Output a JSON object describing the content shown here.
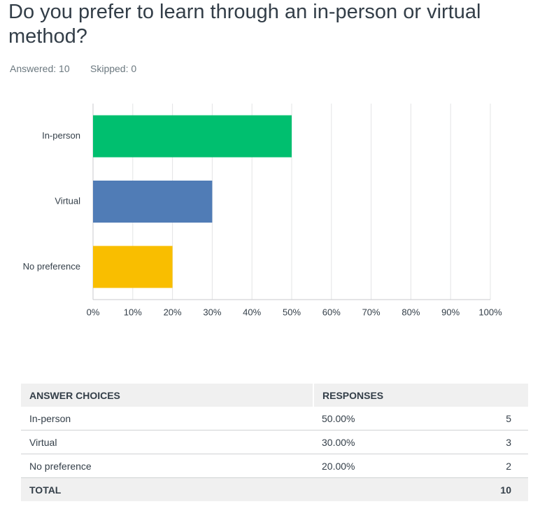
{
  "header": {
    "title": "Do you prefer to learn through an in-person or virtual method?",
    "answered": "Answered: 10",
    "skipped": "Skipped: 0"
  },
  "chart_data": {
    "type": "hbar",
    "categories": [
      "In-person",
      "Virtual",
      "No preference"
    ],
    "values": [
      50,
      30,
      20
    ],
    "colors": [
      "#00bf6f",
      "#507cb6",
      "#f9be00"
    ],
    "xlim": [
      0,
      100
    ],
    "xticks": [
      {
        "value": 0,
        "label": "0%"
      },
      {
        "value": 10,
        "label": "10%"
      },
      {
        "value": 20,
        "label": "20%"
      },
      {
        "value": 30,
        "label": "30%"
      },
      {
        "value": 40,
        "label": "40%"
      },
      {
        "value": 50,
        "label": "50%"
      },
      {
        "value": 60,
        "label": "60%"
      },
      {
        "value": 70,
        "label": "70%"
      },
      {
        "value": 80,
        "label": "80%"
      },
      {
        "value": 90,
        "label": "90%"
      },
      {
        "value": 100,
        "label": "100%"
      }
    ],
    "grid": true
  },
  "table": {
    "headers": [
      "ANSWER CHOICES",
      "RESPONSES"
    ],
    "rows": [
      [
        "In-person",
        "50.00%",
        5
      ],
      [
        "Virtual",
        "30.00%",
        3
      ],
      [
        "No preference",
        "20.00%",
        2
      ]
    ],
    "total": [
      "TOTAL",
      10
    ]
  }
}
